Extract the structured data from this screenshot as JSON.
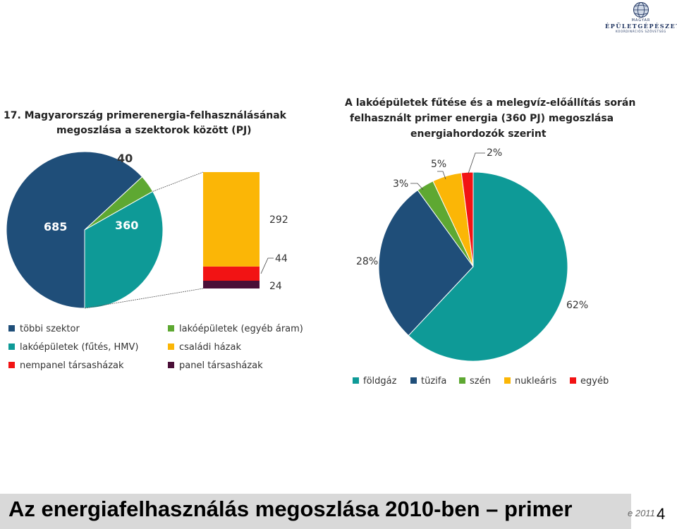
{
  "logo": {
    "top": "MAGYAR",
    "main": "ÉPÜLETGÉPÉSZETI",
    "sub": "KOORDINÁCIÓS SZÖVETSÉG"
  },
  "colors": {
    "dark_blue": "#1f4e79",
    "teal": "#0e9a97",
    "green": "#5ea832",
    "orange": "#fbb606",
    "red": "#f21314",
    "maroon": "#4a0f37"
  },
  "left_title": {
    "line1": "17.   Magyarország primerenergia-felhasználásának",
    "line2": "megoszlása a szektorok között (PJ)"
  },
  "right_title": {
    "line1": "A lakóépületek fűtése és a melegvíz-előállítás során",
    "line2": "felhasznált primer energia (360 PJ) megoszlása",
    "line3": "energiahordozók szerint"
  },
  "chart_data": [
    {
      "type": "pie",
      "title": "17. Magyarország primerenergia-felhasználásának megoszlása a szektorok között (PJ)",
      "slices": [
        {
          "label": "többi szektor",
          "value": 685,
          "color": "#1f4e79"
        },
        {
          "label": "lakóépületek (egyéb áram)",
          "value": 40,
          "color": "#5ea832"
        },
        {
          "label": "lakóépületek (fűtés, HMV)",
          "value": 360,
          "color": "#0e9a97"
        }
      ],
      "data_labels": [
        "685",
        "40",
        "360"
      ]
    },
    {
      "type": "bar",
      "stacked": true,
      "categories": [
        "lakóépületek (fűtés, HMV)"
      ],
      "series": [
        {
          "name": "panel társasházak",
          "values": [
            24
          ],
          "color": "#4a0f37"
        },
        {
          "name": "nempanel társasházak",
          "values": [
            44
          ],
          "color": "#f21314"
        },
        {
          "name": "családi házak",
          "values": [
            292
          ],
          "color": "#fbb606"
        }
      ],
      "data_labels": [
        "292",
        "44",
        "24"
      ]
    },
    {
      "type": "pie",
      "title": "A lakóépületek fűtése és a melegvíz-előállítás során felhasznált primer energia (360 PJ) megoszlása energiahordozók szerint",
      "slices": [
        {
          "label": "földgáz",
          "value": 62,
          "color": "#0e9a97"
        },
        {
          "label": "tüzifa",
          "value": 28,
          "color": "#1f4e79"
        },
        {
          "label": "szén",
          "value": 3,
          "color": "#5ea832"
        },
        {
          "label": "nukleáris",
          "value": 5,
          "color": "#fbb606"
        },
        {
          "label": "egyéb",
          "value": 2,
          "color": "#f21314"
        }
      ],
      "data_labels": [
        "62%",
        "28%",
        "3%",
        "5%",
        "2%"
      ]
    }
  ],
  "left_legend": [
    {
      "label": "többi szektor",
      "color": "#1f4e79"
    },
    {
      "label": "lakóépületek (egyéb áram)",
      "color": "#5ea832"
    },
    {
      "label": "lakóépületek (fűtés, HMV)",
      "color": "#0e9a97"
    },
    {
      "label": "családi házak",
      "color": "#fbb606"
    },
    {
      "label": "nempanel társasházak",
      "color": "#f21314"
    },
    {
      "label": "panel társasházak",
      "color": "#4a0f37"
    }
  ],
  "right_legend": [
    {
      "label": "földgáz",
      "color": "#0e9a97"
    },
    {
      "label": "tüzifa",
      "color": "#1f4e79"
    },
    {
      "label": "szén",
      "color": "#5ea832"
    },
    {
      "label": "nukleáris",
      "color": "#fbb606"
    },
    {
      "label": "egyéb",
      "color": "#f21314"
    }
  ],
  "footer": {
    "title": "Az energiafelhasználás megoszlása 2010-ben – primer",
    "right_text": "e 2011",
    "page_number": "4"
  }
}
